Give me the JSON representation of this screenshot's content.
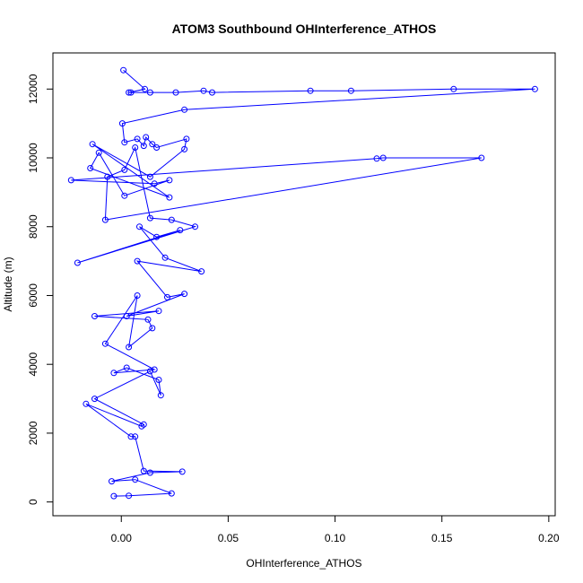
{
  "chart_data": {
    "type": "line",
    "title": "ATOM3 Southbound OHInterference_ATHOS",
    "xlabel": "OHInterference_ATHOS",
    "ylabel": "Altitude (m)",
    "xlim": [
      -0.032,
      0.203
    ],
    "ylim": [
      -400,
      13050
    ],
    "xticks": [
      0.0,
      0.05,
      0.1,
      0.15,
      0.2
    ],
    "xtick_labels": [
      "0.00",
      "0.05",
      "0.10",
      "0.15",
      "0.20"
    ],
    "yticks": [
      0,
      2000,
      4000,
      6000,
      8000,
      10000,
      12000
    ],
    "ytick_labels": [
      "0",
      "2000",
      "4000",
      "6000",
      "8000",
      "10000",
      "12000"
    ],
    "grid": false,
    "legend": "none",
    "series": [
      {
        "color": "#0000ff",
        "marker": "open-circle",
        "x": [
          0.001,
          0.011,
          0.0035,
          0.0045,
          0.0135,
          0.0255,
          0.0385,
          0.0425,
          0.0885,
          0.1075,
          0.1555,
          0.1935,
          0.0295,
          0.0005,
          0.0015,
          0.0075,
          0.0105,
          0.0115,
          0.0145,
          0.0165,
          0.0305,
          0.0295,
          0.0135,
          -0.0135,
          0.0225,
          -0.0145,
          -0.0105,
          0.0015,
          0.0225,
          0.0155,
          -0.0235,
          0.1195,
          0.1225,
          0.1685,
          -0.0075,
          -0.0065,
          0.0015,
          0.0065,
          0.0135,
          0.0235,
          0.0345,
          -0.0205,
          0.0275,
          0.0165,
          0.0085,
          0.0205,
          0.0375,
          0.0075,
          0.0215,
          0.0295,
          0.0025,
          0.0175,
          -0.0125,
          0.0125,
          0.0145,
          0.0035,
          0.0075,
          -0.0075,
          0.0155,
          -0.0035,
          0.0025,
          0.0175,
          0.0185,
          0.0135,
          -0.0125,
          0.0105,
          0.0095,
          -0.0165,
          0.0045,
          0.0065,
          0.0105,
          0.0285,
          0.0135,
          -0.0045,
          0.0065,
          0.0235,
          0.0035,
          -0.0035
        ],
        "y": [
          12550,
          12000,
          11900,
          11900,
          11900,
          11900,
          11950,
          11900,
          11950,
          11950,
          12000,
          12000,
          11400,
          11000,
          10450,
          10550,
          10350,
          10600,
          10400,
          10300,
          10550,
          10250,
          9450,
          10400,
          8850,
          9700,
          10150,
          8900,
          9350,
          9250,
          9350,
          9980,
          10000,
          10000,
          8200,
          9450,
          9650,
          10300,
          8250,
          8200,
          8000,
          6950,
          7900,
          7700,
          8000,
          7100,
          6700,
          7000,
          5950,
          6050,
          5400,
          5550,
          5400,
          5300,
          5050,
          4500,
          6000,
          4600,
          3850,
          3750,
          3900,
          3550,
          3100,
          3800,
          3000,
          2250,
          2200,
          2850,
          1900,
          1900,
          900,
          880,
          850,
          600,
          650,
          250,
          180,
          170
        ]
      }
    ]
  }
}
